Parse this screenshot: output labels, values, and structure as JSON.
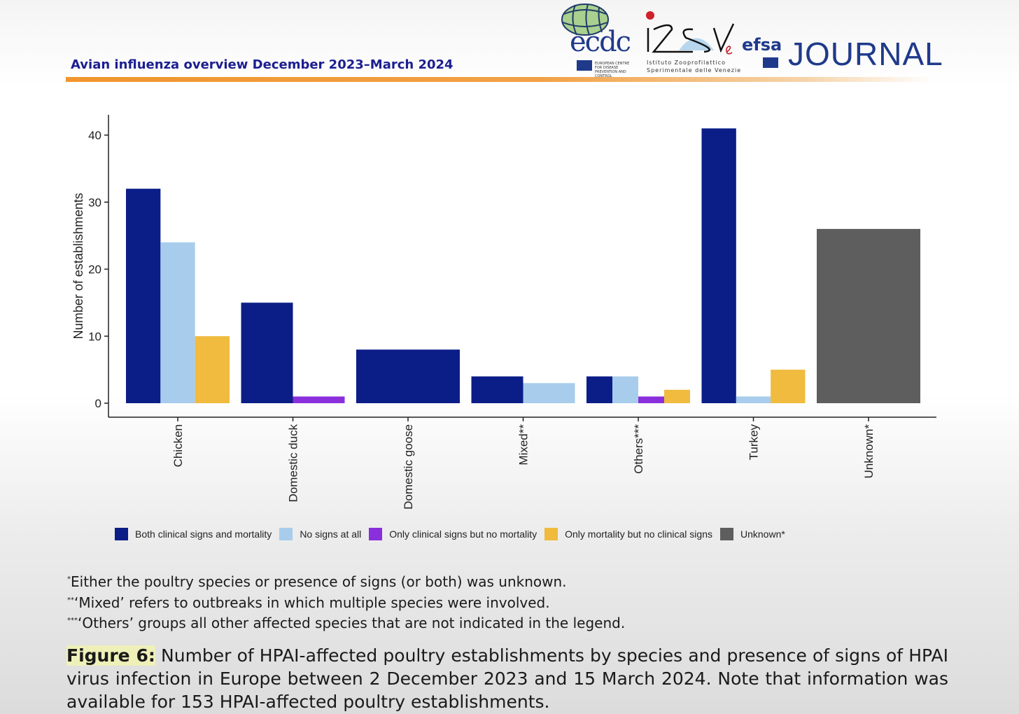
{
  "header": {
    "title": "Avian influenza overview December 2023–March 2024",
    "accent_color": "#f0962c",
    "logos": {
      "ecdc": {
        "word": "ecdc",
        "subtitle": "EUROPEAN CENTRE FOR DISEASE PREVENTION AND CONTROL"
      },
      "izsve": {
        "word": "IZSVe",
        "line1": "Istituto Zooprofilattico",
        "line2": "Sperimentale delle Venezie"
      },
      "efsa": {
        "word": "efsa",
        "journal": "JOURNAL"
      }
    }
  },
  "chart_data": {
    "type": "bar",
    "ylabel": "Number of establishments",
    "xlabel": "",
    "ylim": [
      0,
      42
    ],
    "yticks": [
      0,
      10,
      20,
      30,
      40
    ],
    "grid": false,
    "legend_position": "bottom",
    "categories": [
      "Chicken",
      "Domestic duck",
      "Domestic goose",
      "Mixed**",
      "Others***",
      "Turkey",
      "Unknown*"
    ],
    "series": [
      {
        "name": "Both clinical signs and mortality",
        "color": "#0b1d87",
        "values": [
          32,
          15,
          8,
          4,
          4,
          41,
          null
        ]
      },
      {
        "name": "No signs at all",
        "color": "#a8cdec",
        "values": [
          24,
          null,
          null,
          3,
          4,
          1,
          null
        ]
      },
      {
        "name": "Only clinical signs but no mortality",
        "color": "#8a2fdc",
        "values": [
          null,
          1,
          null,
          null,
          1,
          null,
          null
        ]
      },
      {
        "name": "Only mortality but no clinical signs",
        "color": "#f0bb3e",
        "values": [
          10,
          null,
          null,
          null,
          2,
          5,
          null
        ]
      },
      {
        "name": "Unknown*",
        "color": "#5e5e5e",
        "values": [
          null,
          null,
          null,
          null,
          null,
          null,
          26
        ]
      }
    ]
  },
  "footnotes": [
    {
      "mark": "*",
      "text": "Either the poultry species or presence of signs (or both) was unknown."
    },
    {
      "mark": "**",
      "text": "‘Mixed’ refers to outbreaks in which multiple species were involved."
    },
    {
      "mark": "***",
      "text": "‘Others’ groups all other affected species that are not indicated in the legend."
    }
  ],
  "caption": {
    "label": "Figure 6:",
    "text": " Number of HPAI-affected poultry establishments by species and presence of signs of HPAI virus infection in Europe between 2 December 2023 and 15 March 2024. Note that information was available for 153 HPAI-affected poultry establishments."
  }
}
